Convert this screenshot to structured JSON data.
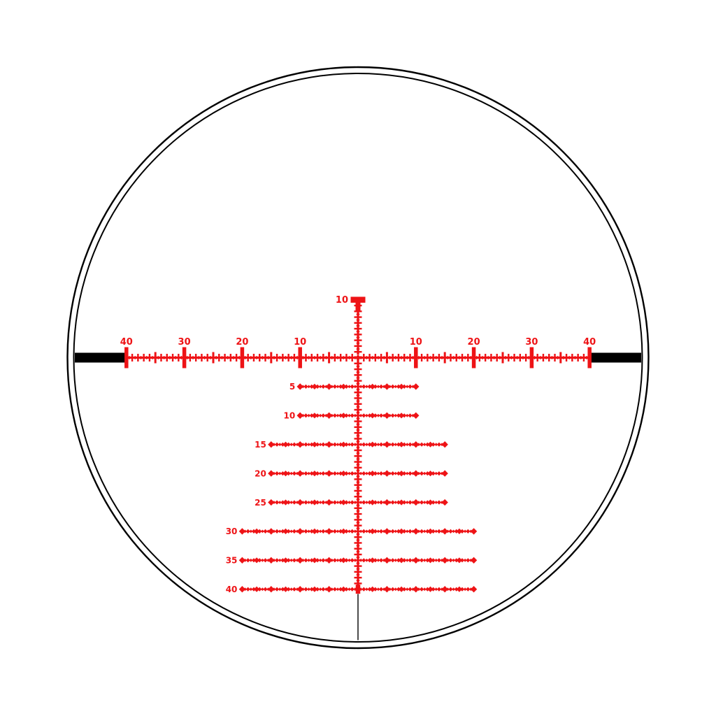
{
  "scene": "riflescope-reticle-view",
  "colors": {
    "reticle_red": "#ee1316",
    "outline_black": "#000000",
    "background": "#ffffff"
  },
  "windage_scale": {
    "left_labels": [
      "40",
      "30",
      "20",
      "10"
    ],
    "right_labels": [
      "10",
      "20",
      "30",
      "40"
    ],
    "major_every_units": 10
  },
  "elevation_scale": {
    "top_label": "10"
  },
  "tree_rows": [
    {
      "label": "5",
      "units_below": 5,
      "half_width_units": 10
    },
    {
      "label": "10",
      "units_below": 10,
      "half_width_units": 10
    },
    {
      "label": "15",
      "units_below": 15,
      "half_width_units": 15
    },
    {
      "label": "20",
      "units_below": 20,
      "half_width_units": 15
    },
    {
      "label": "25",
      "units_below": 25,
      "half_width_units": 15
    },
    {
      "label": "30",
      "units_below": 30,
      "half_width_units": 20
    },
    {
      "label": "35",
      "units_below": 35,
      "half_width_units": 20
    },
    {
      "label": "40",
      "units_below": 40,
      "half_width_units": 20
    }
  ]
}
